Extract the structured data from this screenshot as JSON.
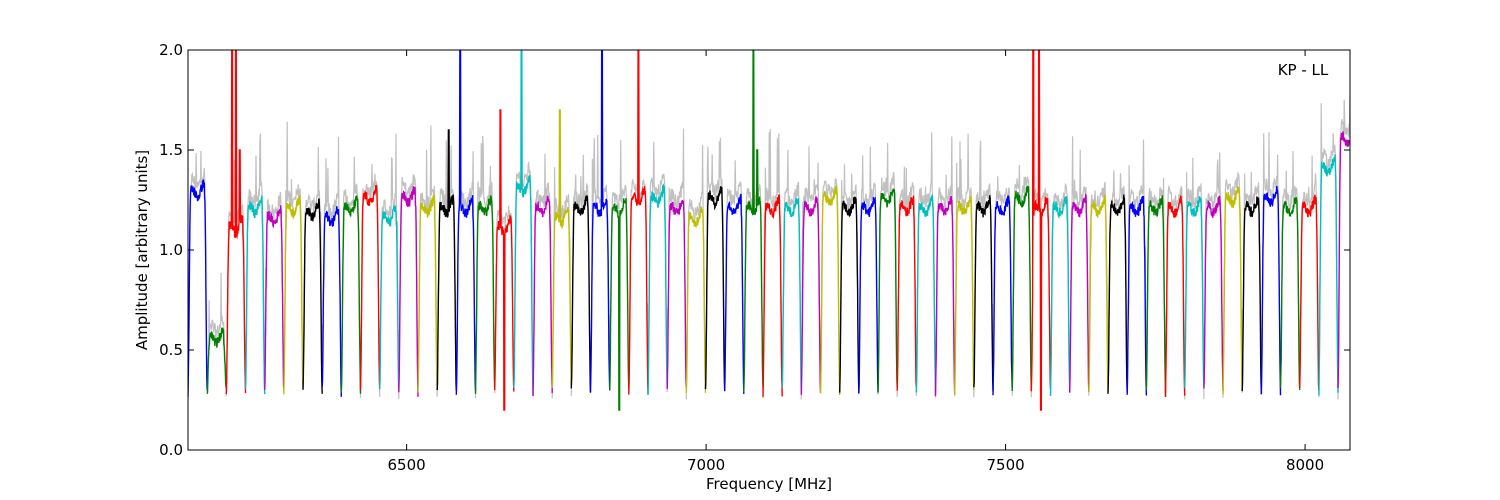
{
  "chart_data": {
    "type": "line",
    "title": "",
    "annotation": "KP - LL",
    "xlabel": "Frequency [MHz]",
    "ylabel": "Amplitude [arbitrary units]",
    "xlim": [
      6135,
      8075
    ],
    "ylim": [
      0.0,
      2.0
    ],
    "x_ticks": [
      6500,
      7000,
      7500,
      8000
    ],
    "x_tick_labels": [
      "6500",
      "7000",
      "7500",
      "8000"
    ],
    "y_ticks": [
      0.0,
      0.5,
      1.0,
      1.5,
      2.0
    ],
    "y_tick_labels": [
      "0.0",
      "0.5",
      "1.0",
      "1.5",
      "2.0"
    ],
    "grid": false,
    "channel_start_mhz": 6135,
    "channel_width_mhz": 32,
    "channel_colors": [
      "blue",
      "green",
      "red",
      "cyan",
      "magenta",
      "yellow",
      "black"
    ],
    "colors": {
      "blue": "#0000ff",
      "green": "#008000",
      "red": "#ff0000",
      "cyan": "#00bfbf",
      "magenta": "#bf00bf",
      "yellow": "#bfbf00",
      "black": "#000000",
      "background_trace": "#c0c0c0"
    },
    "channel_plateau_levels": [
      1.28,
      0.55,
      1.1,
      1.2,
      1.15,
      1.2,
      1.18,
      1.15,
      1.2,
      1.25,
      1.15,
      1.25,
      1.2,
      1.2,
      1.2,
      1.2,
      1.1,
      1.3,
      1.2,
      1.15,
      1.2,
      1.2,
      1.2,
      1.25,
      1.25,
      1.2,
      1.15,
      1.25,
      1.2,
      1.2,
      1.2,
      1.2,
      1.2,
      1.25,
      1.2,
      1.2,
      1.25,
      1.2,
      1.2,
      1.2,
      1.2,
      1.2,
      1.2,
      1.25,
      1.2,
      1.2,
      1.2,
      1.2,
      1.2,
      1.2,
      1.2,
      1.2,
      1.2,
      1.2,
      1.25,
      1.2,
      1.25,
      1.2,
      1.2,
      1.4,
      1.55
    ]
  }
}
